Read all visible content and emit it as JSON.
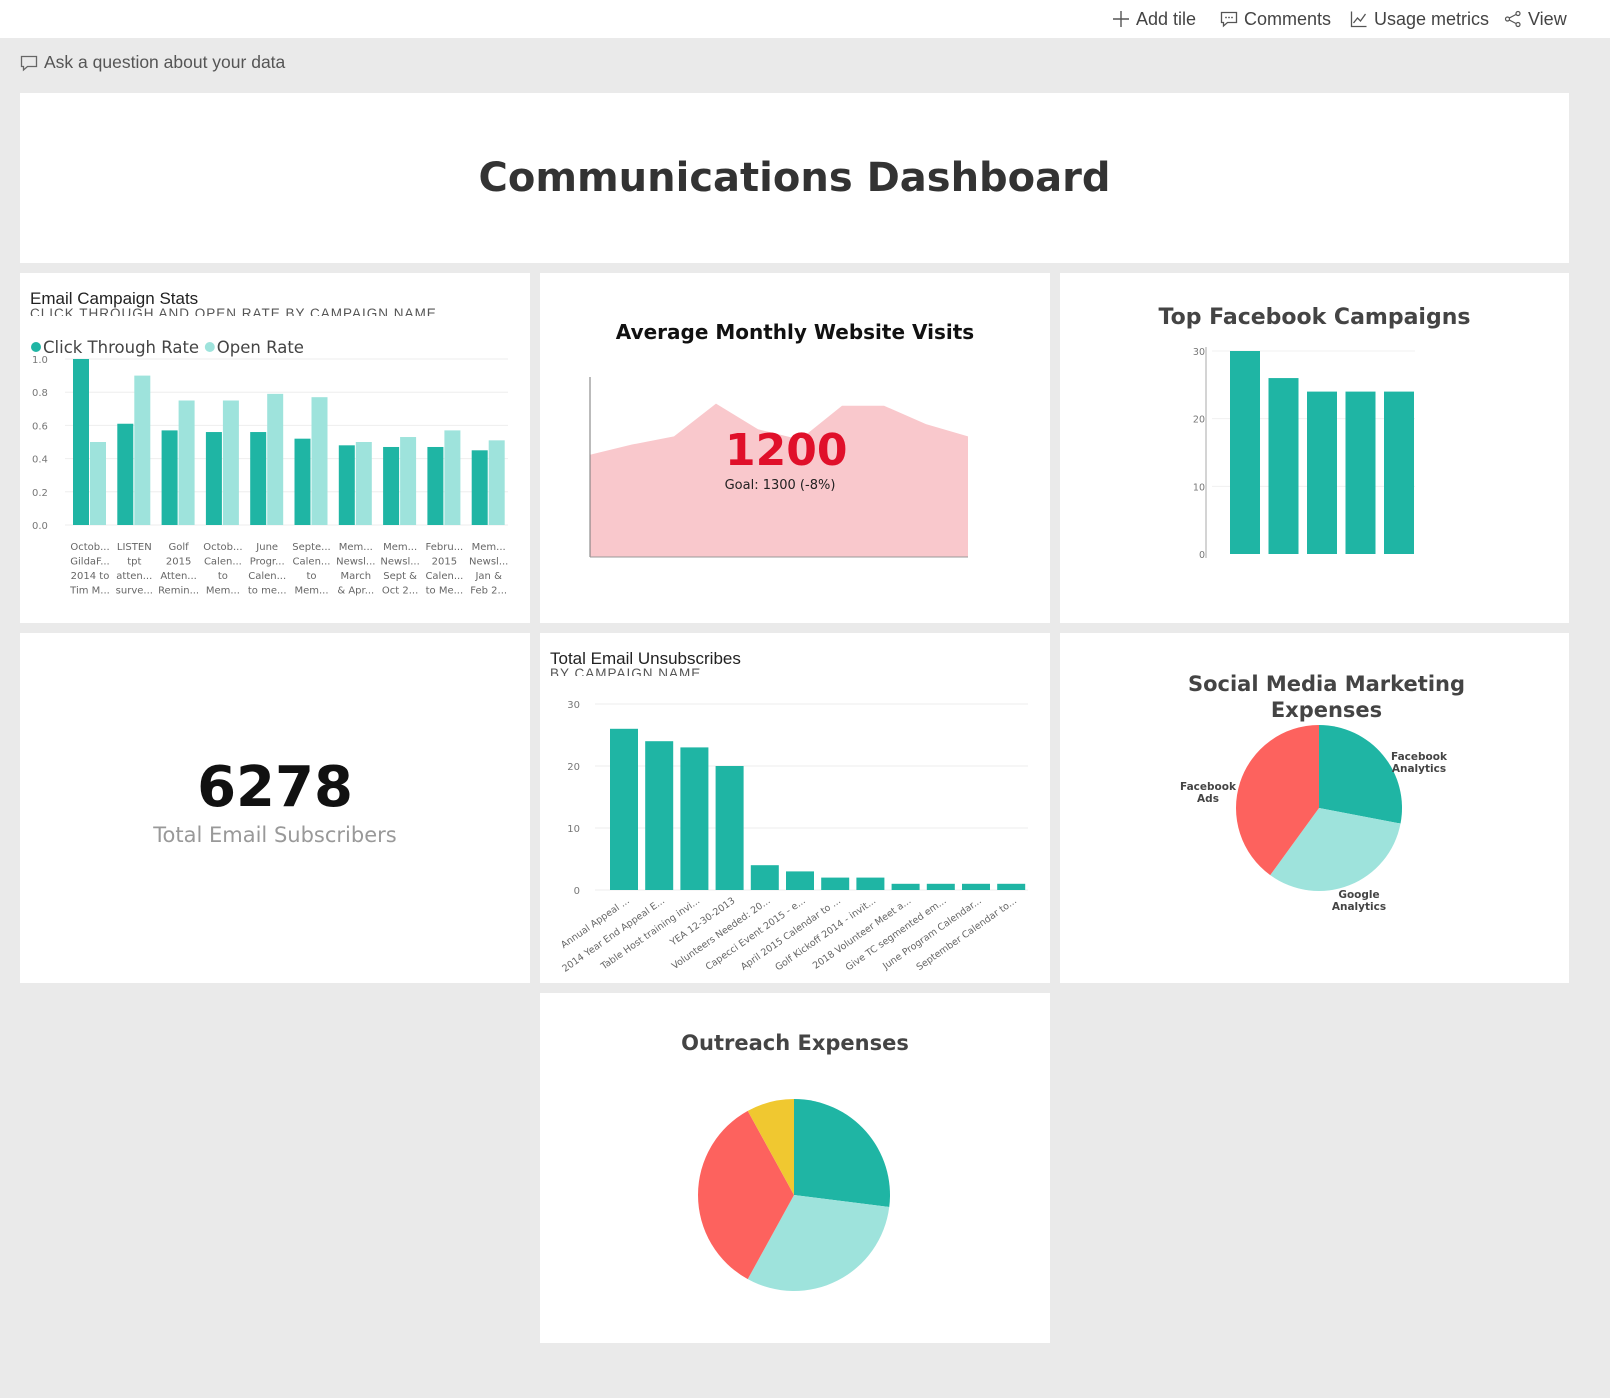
{
  "toolbar": {
    "add_tile": "Add tile",
    "comments": "Comments",
    "usage_metrics": "Usage metrics",
    "view": "View"
  },
  "qna": {
    "prompt": "Ask a question about your data"
  },
  "header": {
    "title": "Communications Dashboard"
  },
  "colors": {
    "teal": "#1fb5a4",
    "teal_light": "#9ee3dc",
    "red": "#fd625e",
    "yellow": "#f0c830",
    "area_fill": "#f9c8cc",
    "kpi_red": "#e0102a"
  },
  "tiles": {
    "email_stats": {
      "title": "Email Campaign Stats",
      "subtitle": "CLICK THROUGH AND OPEN RATE BY CAMPAIGN NAME"
    },
    "website_visits": {
      "title": "Average Monthly Website Visits",
      "value": "1200",
      "goal": "Goal: 1300 (-8%)"
    },
    "facebook": {
      "title": "Top Facebook Campaigns"
    },
    "subscribers": {
      "value": "6278",
      "label": "Total Email Subscribers"
    },
    "unsubscribes": {
      "title": "Total Email Unsubscribes",
      "subtitle": "BY CAMPAIGN NAME"
    },
    "social": {
      "title_line1": "Social Media Marketing",
      "title_line2": "Expenses"
    },
    "outreach": {
      "title": "Outreach Expenses"
    }
  },
  "chart_data": [
    {
      "id": "email_stats",
      "type": "bar",
      "title": "Email Campaign Stats",
      "subtitle": "CLICK THROUGH AND OPEN RATE BY CAMPAIGN NAME",
      "legend": [
        "Click Through Rate",
        "Open Rate"
      ],
      "categories": [
        [
          "Octob...",
          "GildaF...",
          "2014 to",
          "Tim M..."
        ],
        [
          "LISTEN",
          "tpt",
          "atten...",
          "surve..."
        ],
        [
          "Golf",
          "2015",
          "Atten...",
          "Remin..."
        ],
        [
          "Octob...",
          "Calen...",
          "to",
          "Mem..."
        ],
        [
          "June",
          "Progr...",
          "Calen...",
          "to me..."
        ],
        [
          "Septe...",
          "Calen...",
          "to",
          "Mem..."
        ],
        [
          "Mem...",
          "Newsl...",
          "March",
          "& Apr..."
        ],
        [
          "Mem...",
          "Newsl...",
          "Sept &",
          "Oct 2..."
        ],
        [
          "Febru...",
          "2015",
          "Calen...",
          "to Me..."
        ],
        [
          "Mem...",
          "Newsl...",
          "Jan &",
          "Feb 2..."
        ]
      ],
      "series": [
        {
          "name": "Click Through Rate",
          "values": [
            1.0,
            0.61,
            0.57,
            0.56,
            0.56,
            0.52,
            0.48,
            0.47,
            0.47,
            0.45
          ]
        },
        {
          "name": "Open Rate",
          "values": [
            0.5,
            0.9,
            0.75,
            0.75,
            0.79,
            0.77,
            0.5,
            0.53,
            0.57,
            0.51
          ]
        }
      ],
      "yticks": [
        "0.0",
        "0.2",
        "0.4",
        "0.6",
        "0.8",
        "1.0"
      ],
      "ylim": [
        0,
        1.0
      ]
    },
    {
      "id": "website_visits",
      "type": "area",
      "title": "Average Monthly Website Visits",
      "x": [
        1,
        2,
        3,
        4,
        5,
        6,
        7,
        8,
        9,
        10
      ],
      "values": [
        1000,
        1100,
        1180,
        1500,
        1250,
        1150,
        1480,
        1480,
        1300,
        1180
      ],
      "ylim": [
        0,
        1800
      ],
      "kpi": "1200",
      "goal": "Goal: 1300 (-8%)"
    },
    {
      "id": "facebook",
      "type": "bar",
      "title": "Top Facebook Campaigns",
      "values": [
        30,
        26,
        24,
        24,
        24
      ],
      "yticks": [
        "0",
        "10",
        "20",
        "30"
      ],
      "ylim": [
        0,
        30
      ]
    },
    {
      "id": "unsubscribes",
      "type": "bar",
      "title": "Total Email Unsubscribes",
      "subtitle": "BY CAMPAIGN NAME",
      "categories": [
        "Annual Appeal ...",
        "2014 Year End Appeal E...",
        "Table Host training invi...",
        "YEA 12-30-2013",
        "Volunteers Needed: 20...",
        "Capecci Event 2015 - e...",
        "April 2015 Calendar to ...",
        "Golf Kickoff 2014 - invit...",
        "2018 Volunteer Meet a...",
        "Give TC segmented em...",
        "June Program Calendar...",
        "September Calendar to..."
      ],
      "values": [
        26,
        24,
        23,
        20,
        4,
        3,
        2,
        2,
        1,
        1,
        1,
        1
      ],
      "yticks": [
        "0",
        "10",
        "20",
        "30"
      ],
      "ylim": [
        0,
        30
      ]
    },
    {
      "id": "social",
      "type": "pie",
      "title": "Social Media Marketing Expenses",
      "labels": [
        "Facebook Analytics",
        "Google Analytics",
        "Facebook Ads"
      ],
      "label_lines": [
        [
          "Facebook",
          "Analytics"
        ],
        [
          "Google",
          "Analytics"
        ],
        [
          "Facebook",
          "Ads"
        ]
      ],
      "values": [
        28,
        32,
        40
      ],
      "colors": [
        "#1fb5a4",
        "#9ee3dc",
        "#fd625e"
      ]
    },
    {
      "id": "outreach",
      "type": "pie",
      "title": "Outreach Expenses",
      "values": [
        27,
        31,
        34,
        8
      ],
      "colors": [
        "#1fb5a4",
        "#9ee3dc",
        "#fd625e",
        "#f0c830"
      ]
    }
  ]
}
